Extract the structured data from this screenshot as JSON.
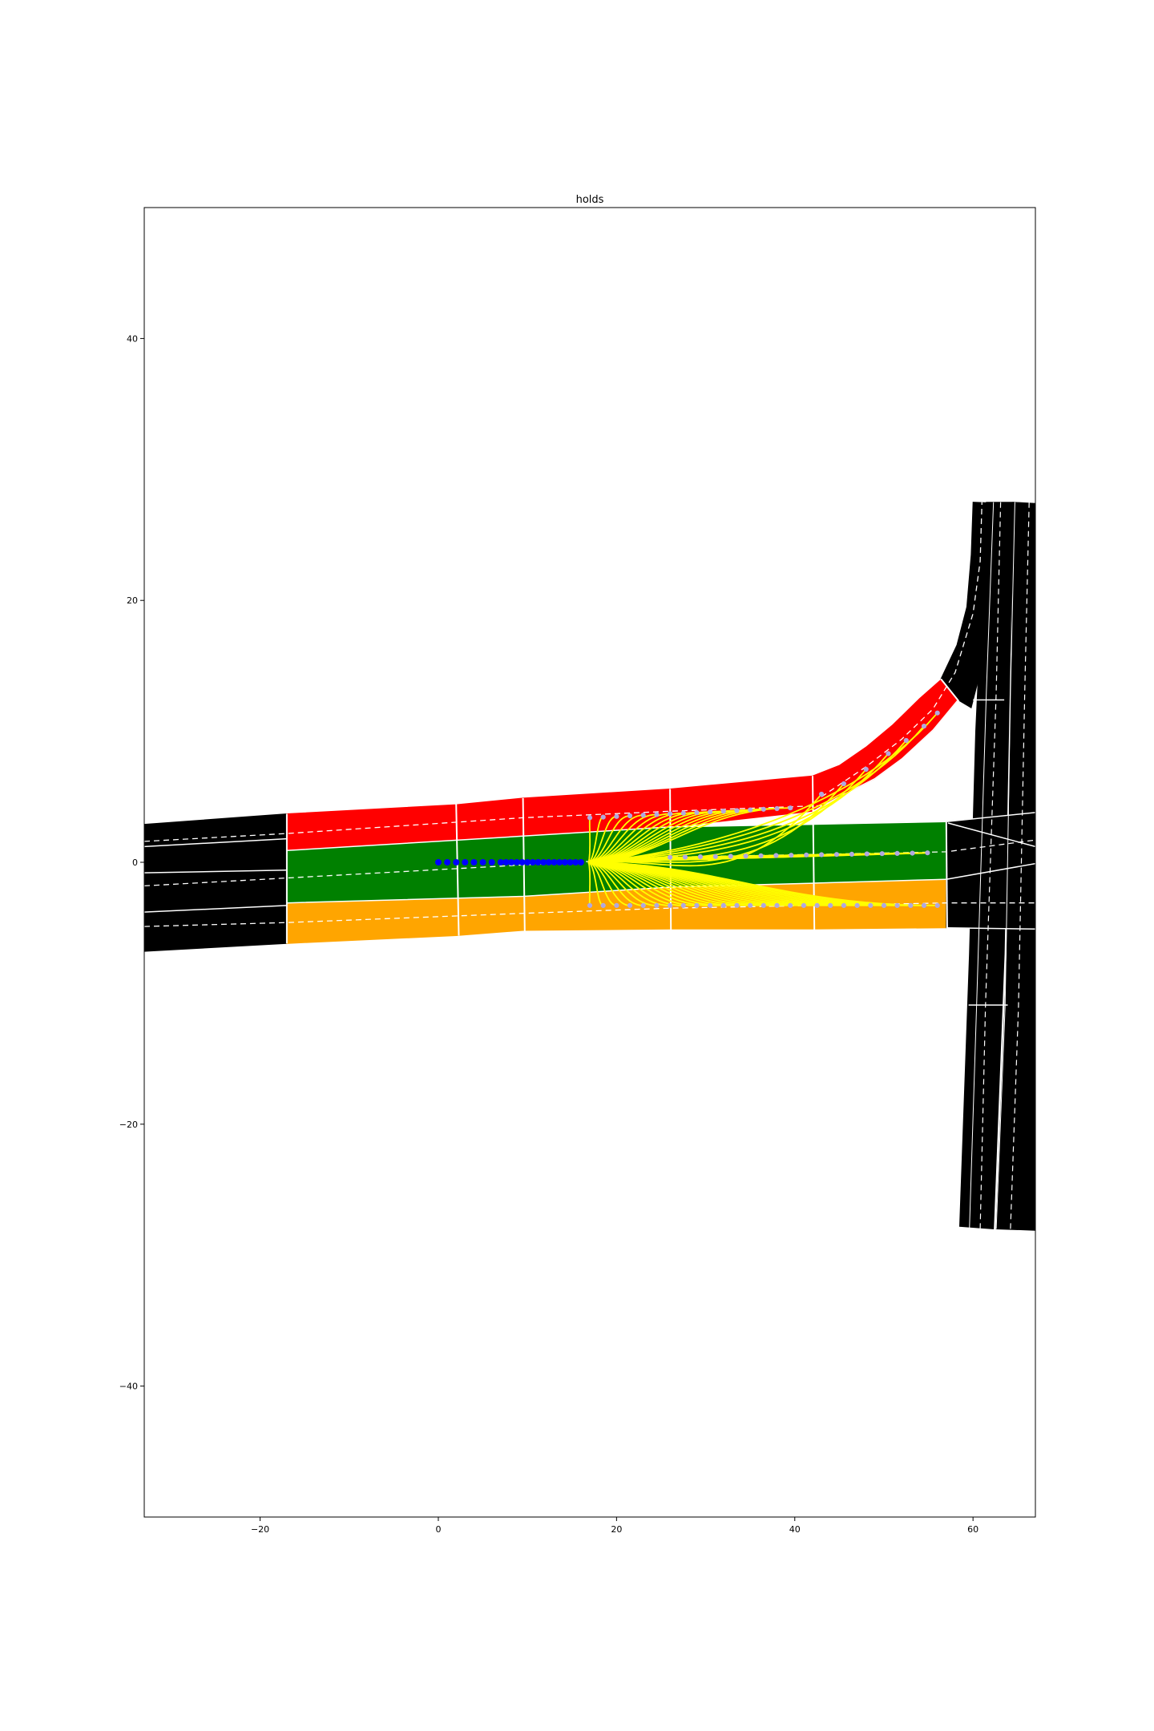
{
  "chart_data": {
    "type": "scatter",
    "title": "holds",
    "xlabel": "",
    "ylabel": "",
    "xlim": [
      -33,
      67
    ],
    "ylim": [
      -50,
      50
    ],
    "x_ticks": [
      -20,
      0,
      20,
      40,
      60
    ],
    "y_ticks": [
      -40,
      -20,
      0,
      20,
      40
    ],
    "x_tick_labels": [
      "−20",
      "0",
      "20",
      "40",
      "60"
    ],
    "y_tick_labels": [
      "−40",
      "−20",
      "0",
      "20",
      "40"
    ],
    "grid": false,
    "legend": "none",
    "colors": {
      "road": "#000000",
      "lane_left": "#ff0000",
      "lane_center": "#008000",
      "lane_right": "#ffa500",
      "trajectories": "#ffff00",
      "history": "#0000ff",
      "goal_points": "#b0a8e0",
      "lane_lines": "#ffffff"
    },
    "history_points": {
      "x": [
        0,
        1,
        2,
        3,
        4,
        5,
        6,
        7,
        7.6,
        8.2,
        8.8,
        9.4,
        10,
        10.6,
        11.2,
        11.8,
        12.4,
        13,
        13.6,
        14.2,
        14.8,
        15.4,
        16
      ],
      "y": [
        0,
        0,
        0,
        0,
        0,
        0,
        0,
        0,
        0,
        0,
        0,
        0,
        0,
        0,
        0,
        0,
        0,
        0,
        0,
        0,
        0,
        0,
        0
      ]
    },
    "trajectory_origin": [
      16.8,
      0
    ],
    "goals_left_lane": {
      "x": [
        17,
        18.5,
        20,
        21.5,
        23,
        24.5,
        26,
        27.5,
        29,
        30.5,
        32,
        33.5,
        35,
        36.5,
        38,
        39.5
      ],
      "y": [
        3.4,
        3.45,
        3.5,
        3.55,
        3.6,
        3.65,
        3.7,
        3.75,
        3.8,
        3.85,
        3.9,
        3.95,
        4.0,
        4.05,
        4.1,
        4.15
      ]
    },
    "goals_center_lane": {
      "x": [
        26,
        27.7,
        29.4,
        31.1,
        32.8,
        34.5,
        36.2,
        37.9,
        39.6,
        41.3,
        43,
        44.7,
        46.4,
        48.1,
        49.8,
        51.5,
        53.2,
        54.9
      ],
      "y": [
        0.38,
        0.4,
        0.42,
        0.44,
        0.46,
        0.48,
        0.5,
        0.52,
        0.54,
        0.56,
        0.58,
        0.6,
        0.62,
        0.64,
        0.66,
        0.68,
        0.7,
        0.72
      ]
    },
    "goals_right_lane": {
      "x": [
        17,
        18.5,
        20,
        21.5,
        23,
        24.5,
        26,
        27.5,
        29,
        30.5,
        32,
        33.5,
        35,
        36.5,
        38,
        39.5,
        41,
        42.5,
        44,
        45.5,
        47,
        48.5,
        50,
        51.5,
        53,
        54.5,
        56
      ],
      "y": [
        -3.3,
        -3.3,
        -3.3,
        -3.3,
        -3.3,
        -3.3,
        -3.3,
        -3.3,
        -3.3,
        -3.3,
        -3.3,
        -3.3,
        -3.3,
        -3.3,
        -3.3,
        -3.3,
        -3.3,
        -3.3,
        -3.3,
        -3.3,
        -3.3,
        -3.3,
        -3.3,
        -3.3,
        -3.3,
        -3.3,
        -3.3
      ]
    },
    "goals_turn_lane": {
      "x": [
        43,
        45.5,
        48,
        50.5,
        52.5,
        54.5,
        56
      ],
      "y": [
        5.2,
        6.0,
        7.1,
        8.3,
        9.3,
        10.4,
        11.4
      ]
    }
  }
}
